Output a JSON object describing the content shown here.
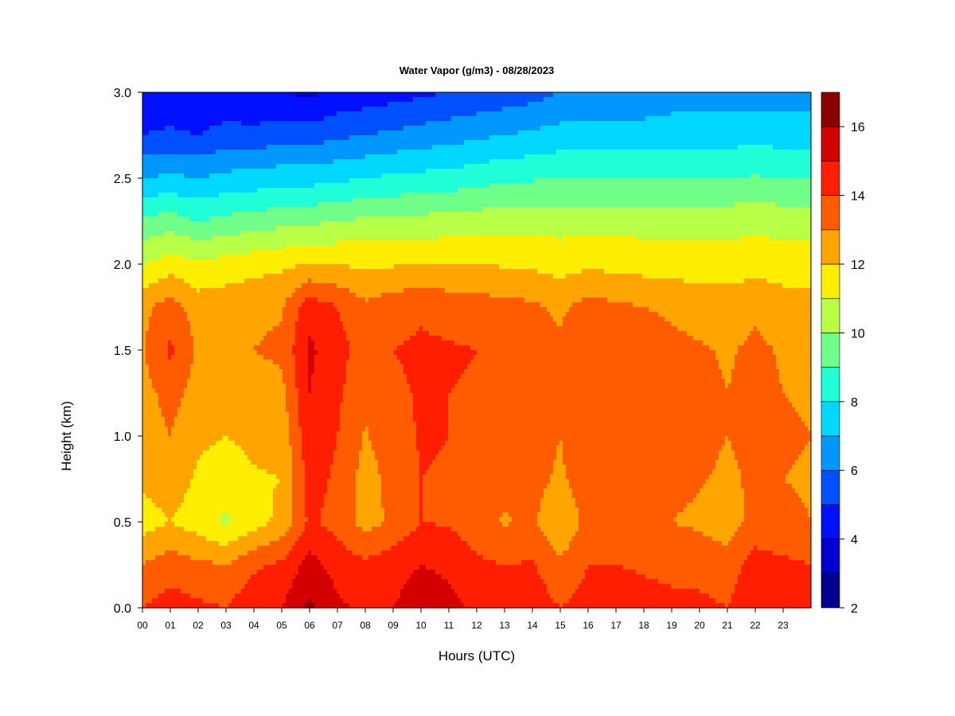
{
  "chart_data": {
    "type": "heatmap",
    "title": "Water Vapor (g/m3) - 08/28/2023",
    "xlabel": "Hours (UTC)",
    "ylabel": "Height (km)",
    "xlim": [
      0,
      24
    ],
    "ylim": [
      0,
      3
    ],
    "x_tick_labels": [
      "00",
      "01",
      "02",
      "03",
      "04",
      "05",
      "06",
      "07",
      "08",
      "09",
      "10",
      "11",
      "12",
      "13",
      "14",
      "15",
      "16",
      "17",
      "18",
      "19",
      "20",
      "21",
      "22",
      "23"
    ],
    "y_tick_values": [
      0.0,
      0.5,
      1.0,
      1.5,
      2.0,
      2.5,
      3.0
    ],
    "y_tick_labels": [
      "0.0",
      "0.5",
      "1.0",
      "1.5",
      "2.0",
      "2.5",
      "3.0"
    ],
    "colorbar": {
      "min": 2,
      "max": 17,
      "levels": [
        2,
        3,
        4,
        5,
        6,
        7,
        8,
        9,
        10,
        11,
        12,
        13,
        14,
        15,
        16,
        17
      ],
      "tick_values": [
        2,
        4,
        6,
        8,
        10,
        12,
        14,
        16
      ],
      "tick_labels": [
        "2",
        "4",
        "6",
        "8",
        "10",
        "12",
        "14",
        "16"
      ],
      "colors": [
        "#00008f",
        "#0000d0",
        "#0010ff",
        "#0050ff",
        "#0098ff",
        "#00d8ff",
        "#20ffd8",
        "#70ff88",
        "#b8ff48",
        "#ffee00",
        "#ffa400",
        "#ff5c00",
        "#ff1f00",
        "#d40000",
        "#8b0000"
      ]
    },
    "heights_km": [
      0.0,
      0.25,
      0.5,
      0.75,
      1.0,
      1.25,
      1.5,
      1.75,
      2.0,
      2.25,
      2.5,
      2.75,
      3.0
    ],
    "values_by_hour": [
      {
        "hour": 0,
        "values": [
          14.0,
          13.0,
          11.5,
          12.2,
          12.4,
          12.6,
          12.9,
          12.7,
          11.0,
          9.2,
          7.0,
          5.0,
          4.2
        ]
      },
      {
        "hour": 1,
        "values": [
          14.5,
          13.5,
          12.0,
          12.6,
          13.0,
          13.4,
          14.2,
          13.5,
          11.5,
          9.5,
          7.2,
          5.2,
          4.2
        ]
      },
      {
        "hour": 2,
        "values": [
          14.2,
          13.2,
          11.5,
          11.8,
          12.2,
          12.6,
          12.8,
          12.5,
          11.2,
          9.0,
          7.0,
          5.0,
          4.0
        ]
      },
      {
        "hour": 3,
        "values": [
          14.0,
          13.0,
          10.8,
          11.6,
          12.0,
          12.5,
          12.8,
          12.6,
          11.4,
          9.3,
          7.3,
          5.4,
          4.2
        ]
      },
      {
        "hour": 4,
        "values": [
          14.8,
          13.8,
          11.5,
          11.9,
          12.2,
          12.6,
          13.0,
          12.8,
          11.6,
          9.5,
          7.4,
          5.3,
          4.0
        ]
      },
      {
        "hour": 5,
        "values": [
          15.0,
          14.2,
          12.3,
          12.0,
          12.3,
          12.7,
          13.2,
          12.9,
          11.8,
          9.7,
          7.6,
          5.6,
          4.0
        ]
      },
      {
        "hour": 6,
        "values": [
          16.2,
          15.4,
          14.2,
          14.4,
          14.8,
          15.0,
          15.2,
          14.6,
          12.0,
          9.8,
          7.6,
          5.5,
          3.8
        ]
      },
      {
        "hour": 7,
        "values": [
          15.2,
          14.6,
          13.6,
          13.8,
          14.0,
          14.2,
          14.4,
          14.0,
          12.0,
          10.0,
          7.8,
          5.8,
          4.2
        ]
      },
      {
        "hour": 8,
        "values": [
          14.8,
          14.2,
          12.6,
          12.6,
          12.9,
          13.2,
          13.5,
          13.2,
          11.8,
          10.2,
          8.0,
          6.0,
          4.4
        ]
      },
      {
        "hour": 9,
        "values": [
          15.0,
          14.6,
          13.2,
          13.3,
          13.6,
          13.8,
          14.0,
          13.6,
          11.9,
          10.2,
          8.2,
          6.2,
          4.6
        ]
      },
      {
        "hour": 10,
        "values": [
          15.6,
          15.0,
          14.0,
          14.0,
          14.1,
          14.1,
          14.2,
          13.8,
          12.0,
          10.3,
          8.3,
          6.4,
          4.8
        ]
      },
      {
        "hour": 11,
        "values": [
          15.3,
          14.8,
          13.9,
          13.9,
          14.0,
          14.0,
          14.1,
          13.6,
          12.0,
          10.4,
          8.4,
          6.6,
          5.0
        ]
      },
      {
        "hour": 12,
        "values": [
          14.8,
          14.2,
          13.4,
          13.6,
          13.8,
          13.9,
          14.0,
          13.5,
          12.0,
          10.5,
          8.6,
          6.8,
          5.2
        ]
      },
      {
        "hour": 13,
        "values": [
          14.6,
          14.0,
          12.9,
          13.3,
          13.6,
          13.7,
          13.8,
          13.3,
          11.9,
          10.6,
          8.8,
          7.0,
          5.4
        ]
      },
      {
        "hour": 14,
        "values": [
          14.6,
          14.1,
          13.2,
          13.4,
          13.6,
          13.6,
          13.7,
          13.2,
          11.8,
          10.6,
          8.9,
          7.2,
          5.6
        ]
      },
      {
        "hour": 15,
        "values": [
          14.0,
          13.2,
          12.0,
          12.8,
          13.0,
          13.1,
          13.2,
          12.8,
          11.6,
          10.6,
          9.0,
          7.4,
          6.0
        ]
      },
      {
        "hour": 16,
        "values": [
          14.4,
          14.0,
          13.4,
          13.7,
          13.9,
          13.9,
          14.0,
          13.4,
          11.8,
          10.6,
          9.0,
          7.4,
          6.0
        ]
      },
      {
        "hour": 17,
        "values": [
          14.4,
          14.0,
          13.3,
          13.6,
          13.9,
          13.8,
          13.8,
          13.2,
          11.7,
          10.6,
          9.0,
          7.4,
          6.0
        ]
      },
      {
        "hour": 18,
        "values": [
          14.3,
          13.9,
          13.2,
          13.5,
          13.7,
          13.7,
          13.6,
          13.0,
          11.6,
          10.6,
          9.0,
          7.5,
          6.2
        ]
      },
      {
        "hour": 19,
        "values": [
          14.2,
          13.8,
          13.0,
          13.3,
          13.5,
          13.5,
          13.3,
          12.8,
          11.6,
          10.6,
          9.0,
          7.6,
          6.4
        ]
      },
      {
        "hour": 20,
        "values": [
          14.2,
          13.7,
          12.8,
          13.1,
          13.3,
          13.2,
          13.1,
          12.6,
          11.5,
          10.6,
          9.0,
          7.6,
          6.4
        ]
      },
      {
        "hour": 21,
        "values": [
          14.0,
          13.5,
          12.4,
          12.8,
          13.0,
          13.0,
          12.9,
          12.5,
          11.5,
          10.6,
          9.0,
          7.6,
          6.4
        ]
      },
      {
        "hour": 22,
        "values": [
          14.8,
          14.4,
          13.4,
          13.2,
          13.3,
          13.3,
          13.2,
          12.8,
          11.6,
          10.7,
          9.1,
          7.6,
          6.4
        ]
      },
      {
        "hour": 23,
        "values": [
          14.6,
          14.2,
          13.2,
          13.0,
          13.1,
          13.0,
          12.9,
          12.5,
          11.5,
          10.6,
          9.0,
          7.6,
          6.4
        ]
      },
      {
        "hour": 24,
        "values": [
          14.5,
          14.0,
          13.0,
          12.9,
          13.0,
          12.9,
          12.8,
          12.4,
          11.5,
          10.5,
          9.0,
          7.6,
          6.4
        ]
      }
    ]
  }
}
